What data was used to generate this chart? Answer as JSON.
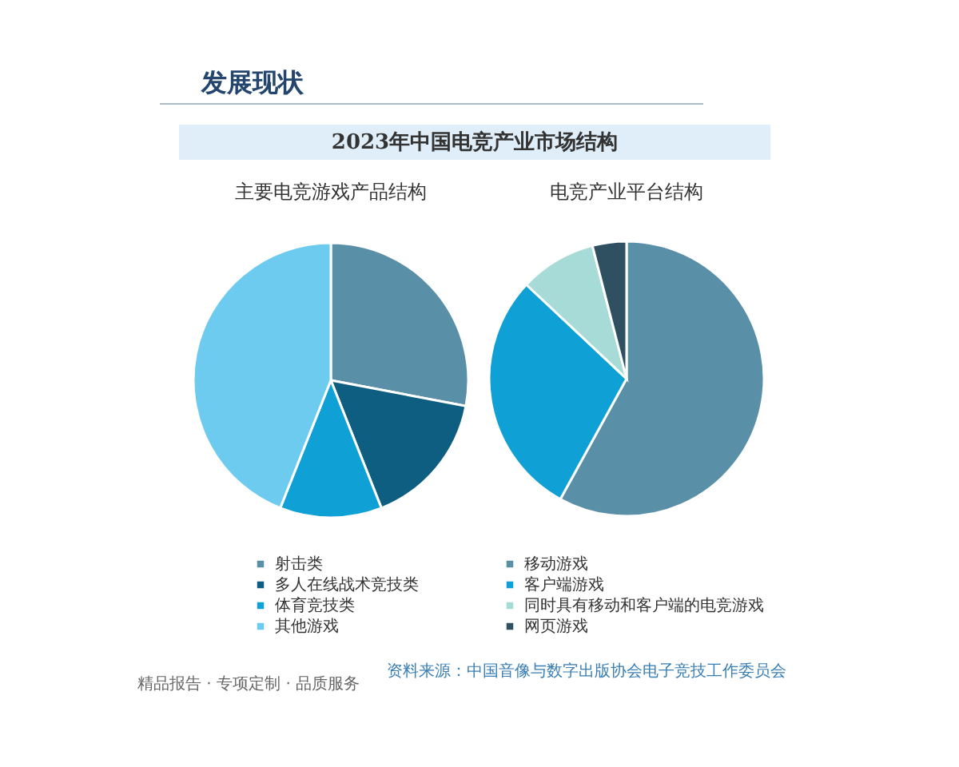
{
  "chart_data": [
    {
      "type": "other",
      "title": "发展现状",
      "subtitle": "2023年中国电竞产业市场结构"
    },
    {
      "type": "pie",
      "title": "主要电竞游戏产品结构",
      "categories": [
        "射击类",
        "多人在线战术竞技类",
        "体育竞技类",
        "其他游戏"
      ],
      "values": [
        28,
        16,
        12,
        44
      ],
      "colors": [
        "#5a8fa8",
        "#0d5e80",
        "#0fa0d6",
        "#6dcbf0"
      ],
      "legend": "bottom"
    },
    {
      "type": "pie",
      "title": "电竞产业平台结构",
      "categories": [
        "移动游戏",
        "客户端游戏",
        "同时具有移动和客户端的电竞游戏",
        "网页游戏"
      ],
      "values": [
        58,
        29,
        9,
        4
      ],
      "colors": [
        "#5a8fa8",
        "#0fa0d6",
        "#a6dbd8",
        "#2f5060"
      ],
      "legend": "bottom"
    },
    {
      "type": "other",
      "annotations": [
        "资料来源：中国音像与数字出版协会电子竞技工作委员会",
        "精品报告 · 专项定制 · 品质服务"
      ]
    }
  ]
}
